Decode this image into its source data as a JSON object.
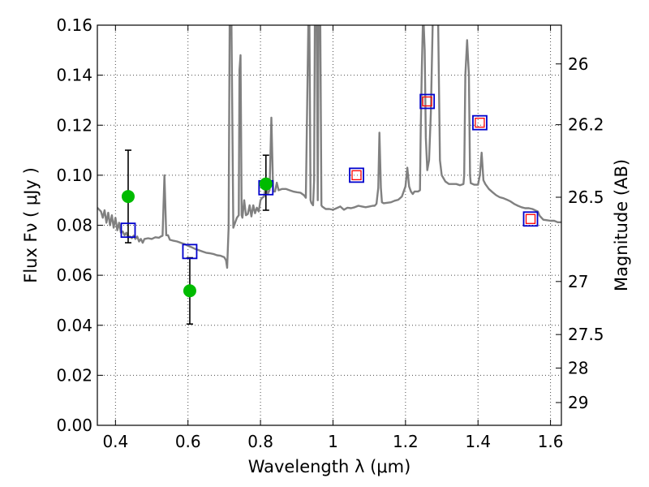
{
  "chart_data": {
    "type": "line",
    "xlabel": "Wavelength  λ (μm)",
    "ylabel": "Flux  Fν  ( μJy )",
    "ylabel_right": "Magnitude (AB)",
    "xlim": [
      0.35,
      1.63
    ],
    "ylim": [
      0,
      0.16
    ],
    "grid": true,
    "x_ticks": [
      0.4,
      0.6,
      0.8,
      1.0,
      1.2,
      1.4,
      1.6
    ],
    "x_tick_labels": [
      "0.4",
      "0.6",
      "0.8",
      "1",
      "1.2",
      "1.4",
      "1.6"
    ],
    "y_ticks": [
      0,
      0.02,
      0.04,
      0.06,
      0.08,
      0.1,
      0.12,
      0.14,
      0.16
    ],
    "y_tick_labels": [
      "0.00",
      "0.02",
      "0.04",
      "0.06",
      "0.08",
      "0.10",
      "0.12",
      "0.14",
      "0.16"
    ],
    "right_ticks": [
      {
        "label": "26",
        "flux": 0.1445
      },
      {
        "label": "26.2",
        "flux": 0.1202
      },
      {
        "label": "26.5",
        "flux": 0.0912
      },
      {
        "label": "27",
        "flux": 0.0575
      },
      {
        "label": "27.5",
        "flux": 0.0363
      },
      {
        "label": "28",
        "flux": 0.0229
      },
      {
        "label": "29",
        "flux": 0.0091
      }
    ],
    "series": [
      {
        "type": "line",
        "color": "#808080",
        "points": [
          [
            0.35,
            0.087
          ],
          [
            0.36,
            0.0855
          ],
          [
            0.365,
            0.083
          ],
          [
            0.37,
            0.086
          ],
          [
            0.375,
            0.081
          ],
          [
            0.38,
            0.085
          ],
          [
            0.385,
            0.08
          ],
          [
            0.39,
            0.084
          ],
          [
            0.395,
            0.079
          ],
          [
            0.4,
            0.083
          ],
          [
            0.405,
            0.078
          ],
          [
            0.41,
            0.081
          ],
          [
            0.415,
            0.077
          ],
          [
            0.42,
            0.0775
          ],
          [
            0.425,
            0.076
          ],
          [
            0.43,
            0.077
          ],
          [
            0.435,
            0.075
          ],
          [
            0.44,
            0.0755
          ],
          [
            0.445,
            0.0748
          ],
          [
            0.45,
            0.0758
          ],
          [
            0.455,
            0.0745
          ],
          [
            0.46,
            0.0755
          ],
          [
            0.465,
            0.0735
          ],
          [
            0.47,
            0.0745
          ],
          [
            0.475,
            0.073
          ],
          [
            0.48,
            0.0745
          ],
          [
            0.49,
            0.0748
          ],
          [
            0.5,
            0.0745
          ],
          [
            0.51,
            0.0752
          ],
          [
            0.52,
            0.075
          ],
          [
            0.525,
            0.0755
          ],
          [
            0.53,
            0.0758
          ],
          [
            0.535,
            0.1
          ],
          [
            0.54,
            0.076
          ],
          [
            0.545,
            0.076
          ],
          [
            0.55,
            0.0742
          ],
          [
            0.56,
            0.0738
          ],
          [
            0.57,
            0.0735
          ],
          [
            0.58,
            0.073
          ],
          [
            0.59,
            0.0725
          ],
          [
            0.6,
            0.0718
          ],
          [
            0.61,
            0.0712
          ],
          [
            0.62,
            0.0705
          ],
          [
            0.63,
            0.07
          ],
          [
            0.64,
            0.0695
          ],
          [
            0.65,
            0.069
          ],
          [
            0.66,
            0.0688
          ],
          [
            0.67,
            0.0685
          ],
          [
            0.68,
            0.068
          ],
          [
            0.69,
            0.0678
          ],
          [
            0.7,
            0.0672
          ],
          [
            0.705,
            0.066
          ],
          [
            0.708,
            0.063
          ],
          [
            0.712,
            0.079
          ],
          [
            0.715,
            0.161
          ],
          [
            0.72,
            0.161
          ],
          [
            0.725,
            0.079
          ],
          [
            0.73,
            0.081
          ],
          [
            0.735,
            0.083
          ],
          [
            0.74,
            0.084
          ],
          [
            0.742,
            0.142
          ],
          [
            0.745,
            0.148
          ],
          [
            0.748,
            0.084
          ],
          [
            0.75,
            0.083
          ],
          [
            0.755,
            0.09
          ],
          [
            0.76,
            0.084
          ],
          [
            0.765,
            0.0845
          ],
          [
            0.77,
            0.088
          ],
          [
            0.775,
            0.0835
          ],
          [
            0.78,
            0.088
          ],
          [
            0.785,
            0.0848
          ],
          [
            0.79,
            0.087
          ],
          [
            0.795,
            0.0855
          ],
          [
            0.8,
            0.09
          ],
          [
            0.805,
            0.091
          ],
          [
            0.81,
            0.0915
          ],
          [
            0.815,
            0.097
          ],
          [
            0.82,
            0.0925
          ],
          [
            0.825,
            0.094
          ],
          [
            0.83,
            0.123
          ],
          [
            0.835,
            0.0935
          ],
          [
            0.84,
            0.0935
          ],
          [
            0.845,
            0.097
          ],
          [
            0.85,
            0.094
          ],
          [
            0.86,
            0.0945
          ],
          [
            0.87,
            0.0945
          ],
          [
            0.88,
            0.094
          ],
          [
            0.89,
            0.0935
          ],
          [
            0.9,
            0.0932
          ],
          [
            0.91,
            0.093
          ],
          [
            0.92,
            0.092
          ],
          [
            0.925,
            0.091
          ],
          [
            0.932,
            0.161
          ],
          [
            0.935,
            0.161
          ],
          [
            0.938,
            0.09
          ],
          [
            0.94,
            0.089
          ],
          [
            0.945,
            0.088
          ],
          [
            0.948,
            0.098
          ],
          [
            0.95,
            0.161
          ],
          [
            0.955,
            0.161
          ],
          [
            0.958,
            0.09
          ],
          [
            0.96,
            0.161
          ],
          [
            0.965,
            0.161
          ],
          [
            0.968,
            0.088
          ],
          [
            0.97,
            0.0875
          ],
          [
            0.98,
            0.0865
          ],
          [
            0.99,
            0.0865
          ],
          [
            1.0,
            0.0862
          ],
          [
            1.01,
            0.0868
          ],
          [
            1.02,
            0.0875
          ],
          [
            1.03,
            0.0862
          ],
          [
            1.04,
            0.087
          ],
          [
            1.05,
            0.0868
          ],
          [
            1.06,
            0.0872
          ],
          [
            1.07,
            0.0878
          ],
          [
            1.08,
            0.0875
          ],
          [
            1.09,
            0.0872
          ],
          [
            1.1,
            0.0875
          ],
          [
            1.11,
            0.0878
          ],
          [
            1.115,
            0.0878
          ],
          [
            1.12,
            0.0886
          ],
          [
            1.125,
            0.095
          ],
          [
            1.128,
            0.117
          ],
          [
            1.132,
            0.095
          ],
          [
            1.135,
            0.0892
          ],
          [
            1.14,
            0.0888
          ],
          [
            1.15,
            0.089
          ],
          [
            1.16,
            0.0892
          ],
          [
            1.17,
            0.0898
          ],
          [
            1.18,
            0.0902
          ],
          [
            1.19,
            0.0915
          ],
          [
            1.2,
            0.0955
          ],
          [
            1.205,
            0.103
          ],
          [
            1.21,
            0.0955
          ],
          [
            1.215,
            0.0935
          ],
          [
            1.22,
            0.0925
          ],
          [
            1.225,
            0.0935
          ],
          [
            1.23,
            0.0935
          ],
          [
            1.235,
            0.0935
          ],
          [
            1.24,
            0.094
          ],
          [
            1.242,
            0.118
          ],
          [
            1.245,
            0.143
          ],
          [
            1.248,
            0.161
          ],
          [
            1.25,
            0.161
          ],
          [
            1.253,
            0.15
          ],
          [
            1.256,
            0.115
          ],
          [
            1.26,
            0.102
          ],
          [
            1.265,
            0.106
          ],
          [
            1.27,
            0.125
          ],
          [
            1.275,
            0.161
          ],
          [
            1.28,
            0.161
          ],
          [
            1.285,
            0.161
          ],
          [
            1.29,
            0.161
          ],
          [
            1.295,
            0.106
          ],
          [
            1.3,
            0.1
          ],
          [
            1.31,
            0.0975
          ],
          [
            1.32,
            0.0965
          ],
          [
            1.33,
            0.0965
          ],
          [
            1.34,
            0.0965
          ],
          [
            1.35,
            0.096
          ],
          [
            1.36,
            0.0965
          ],
          [
            1.362,
            0.1
          ],
          [
            1.365,
            0.14
          ],
          [
            1.37,
            0.154
          ],
          [
            1.375,
            0.14
          ],
          [
            1.378,
            0.1
          ],
          [
            1.38,
            0.0968
          ],
          [
            1.39,
            0.0962
          ],
          [
            1.4,
            0.0962
          ],
          [
            1.405,
            0.1
          ],
          [
            1.41,
            0.109
          ],
          [
            1.415,
            0.098
          ],
          [
            1.42,
            0.0965
          ],
          [
            1.43,
            0.0945
          ],
          [
            1.44,
            0.0932
          ],
          [
            1.45,
            0.092
          ],
          [
            1.46,
            0.0912
          ],
          [
            1.47,
            0.0908
          ],
          [
            1.48,
            0.0902
          ],
          [
            1.49,
            0.0895
          ],
          [
            1.5,
            0.0885
          ],
          [
            1.51,
            0.0878
          ],
          [
            1.52,
            0.0872
          ],
          [
            1.53,
            0.0868
          ],
          [
            1.54,
            0.0868
          ],
          [
            1.55,
            0.0865
          ],
          [
            1.56,
            0.0858
          ],
          [
            1.565,
            0.0855
          ],
          [
            1.57,
            0.0838
          ],
          [
            1.58,
            0.0822
          ],
          [
            1.59,
            0.082
          ],
          [
            1.6,
            0.0818
          ],
          [
            1.61,
            0.0818
          ],
          [
            1.62,
            0.0812
          ],
          [
            1.63,
            0.0812
          ]
        ]
      },
      {
        "type": "square_markers",
        "color": "#0000cc",
        "points": [
          [
            0.435,
            0.078
          ],
          [
            0.605,
            0.0695
          ],
          [
            0.815,
            0.095
          ],
          [
            1.065,
            0.1
          ],
          [
            1.26,
            0.1295
          ],
          [
            1.405,
            0.121
          ],
          [
            1.545,
            0.0825
          ]
        ]
      },
      {
        "type": "small_square_markers",
        "color": "#ff0000",
        "points": [
          [
            1.065,
            0.1
          ],
          [
            1.26,
            0.1295
          ],
          [
            1.405,
            0.121
          ],
          [
            1.545,
            0.0825
          ]
        ]
      },
      {
        "type": "circle_markers_with_errorbars",
        "color": "#00bb00",
        "points": [
          {
            "x": 0.435,
            "y": 0.0915,
            "ylow": 0.073,
            "yhigh": 0.11
          },
          {
            "x": 0.605,
            "y": 0.0538,
            "ylow": 0.0405,
            "yhigh": 0.067
          },
          {
            "x": 0.815,
            "y": 0.0965,
            "ylow": 0.086,
            "yhigh": 0.108
          }
        ]
      }
    ]
  }
}
